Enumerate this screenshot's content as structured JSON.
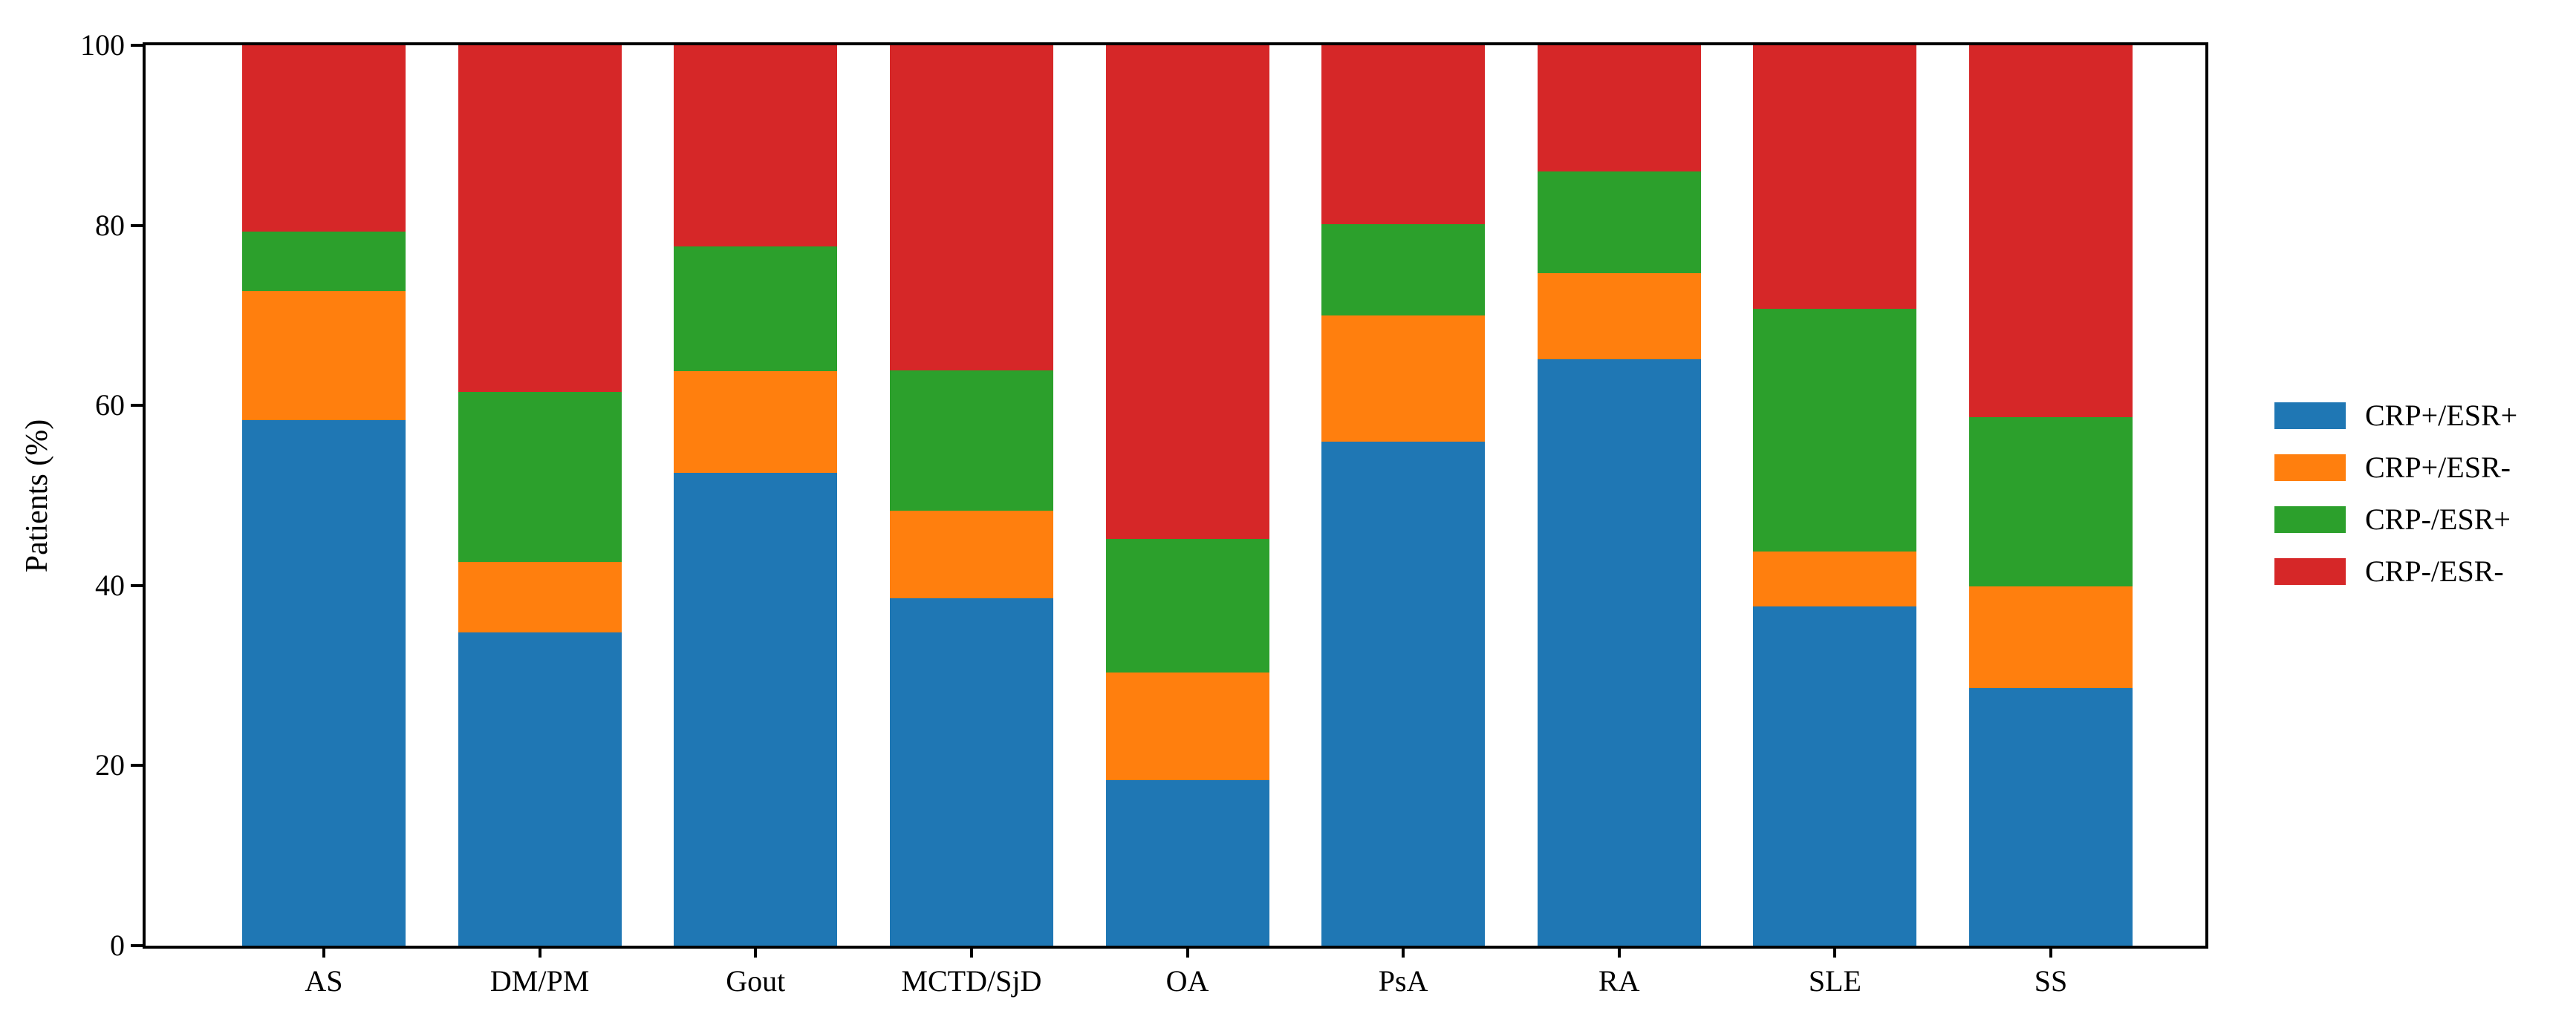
{
  "figure": {
    "background": "#ffffff",
    "axis_color": "#000000",
    "text_color": "#000000"
  },
  "chart_data": {
    "type": "bar",
    "stacked": true,
    "title": "",
    "xlabel": "",
    "ylabel": "Patients (%)",
    "ylim": [
      0,
      100
    ],
    "yticks": [
      0,
      20,
      40,
      60,
      80,
      100
    ],
    "grid": false,
    "legend_position": "right",
    "categories": [
      "AS",
      "DM/PM",
      "Gout",
      "MCTD/SjD",
      "OA",
      "PsA",
      "RA",
      "SLE",
      "SS"
    ],
    "series": [
      {
        "name": "CRP+/ESR+",
        "color": "#1f77b4",
        "values": [
          58.4,
          34.8,
          52.5,
          38.6,
          18.4,
          56.0,
          65.1,
          37.7,
          28.6
        ]
      },
      {
        "name": "CRP+/ESR-",
        "color": "#ff7f0e",
        "values": [
          14.3,
          7.8,
          11.3,
          9.7,
          11.9,
          14.0,
          9.6,
          6.1,
          11.3
        ]
      },
      {
        "name": "CRP-/ESR+",
        "color": "#2ca02c",
        "values": [
          6.6,
          18.9,
          13.9,
          15.6,
          14.9,
          10.1,
          11.3,
          26.9,
          18.8
        ]
      },
      {
        "name": "CRP-/ESR-",
        "color": "#d62728",
        "values": [
          20.7,
          38.5,
          22.3,
          36.1,
          54.8,
          19.9,
          14.0,
          29.3,
          41.3
        ]
      }
    ]
  },
  "layout_note": "stacked percentage bar chart, serif fonts, boxed axes"
}
